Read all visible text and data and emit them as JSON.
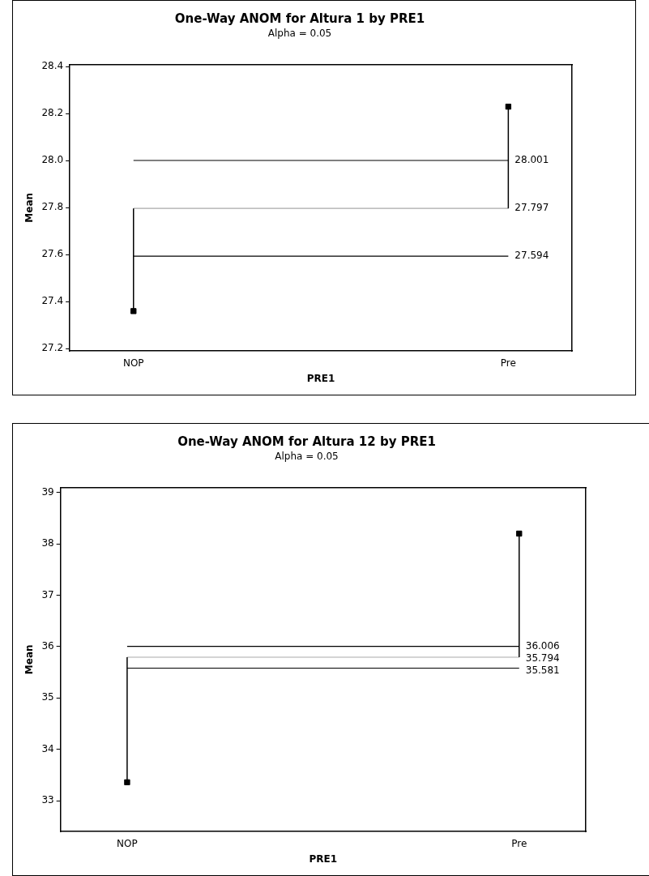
{
  "chart_data": [
    {
      "type": "scatter",
      "title": "One-Way ANOM for Altura 1 by PRE1",
      "subtitle": "Alpha = 0.05",
      "xlabel": "PRE1",
      "ylabel": "Mean",
      "categories": [
        "NOP",
        "Pre"
      ],
      "series": [
        {
          "color": "#000000",
          "values": [
            27.36,
            28.23
          ],
          "errors": [
            [
              27.36,
              27.797
            ],
            [
              27.797,
              28.23
            ]
          ]
        }
      ],
      "marker": "square",
      "grid": false,
      "legend": false,
      "ylim": [
        27.19,
        28.41
      ],
      "yticks": [
        {
          "value": 27.2,
          "label": "27.2"
        },
        {
          "value": 27.4,
          "label": "27.4"
        },
        {
          "value": 27.6,
          "label": "27.6"
        },
        {
          "value": 27.8,
          "label": "27.8"
        },
        {
          "value": 28.0,
          "label": "28.0"
        },
        {
          "value": 28.2,
          "label": "28.2"
        },
        {
          "value": 28.4,
          "label": "28.4"
        }
      ],
      "ref_lines": [
        {
          "axis": "y",
          "value": 28.001,
          "label": "28.001",
          "color": "#000000"
        },
        {
          "axis": "y",
          "value": 27.797,
          "label": "27.797",
          "color": "#aaaaaa"
        },
        {
          "axis": "y",
          "value": 27.594,
          "label": "27.594",
          "color": "#000000"
        }
      ]
    },
    {
      "type": "scatter",
      "title": "One-Way ANOM for Altura 12 by PRE1",
      "subtitle": "Alpha = 0.05",
      "xlabel": "PRE1",
      "ylabel": "Mean",
      "categories": [
        "NOP",
        "Pre"
      ],
      "series": [
        {
          "color": "#000000",
          "values": [
            33.36,
            38.2
          ],
          "errors": [
            [
              33.36,
              35.794
            ],
            [
              35.794,
              38.2
            ]
          ]
        }
      ],
      "marker": "square",
      "grid": false,
      "legend": false,
      "ylim": [
        32.4,
        39.1
      ],
      "yticks": [
        33,
        34,
        35,
        36,
        37,
        38,
        39
      ],
      "ref_lines": [
        {
          "axis": "y",
          "value": 36.006,
          "label": "36.006",
          "color": "#000000"
        },
        {
          "axis": "y",
          "value": 35.794,
          "label": "35.794",
          "color": "#aaaaaa"
        },
        {
          "axis": "y",
          "value": 35.581,
          "label": "35.581",
          "color": "#000000"
        }
      ]
    }
  ]
}
